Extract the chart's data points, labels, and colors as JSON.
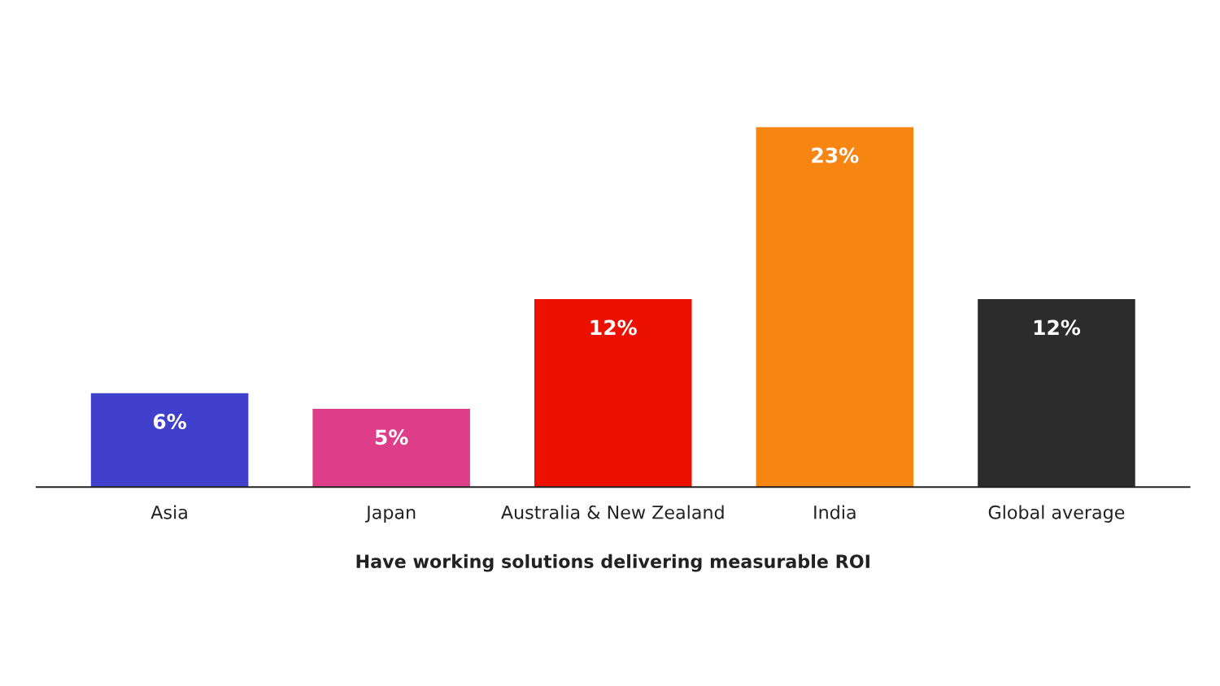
{
  "chart_data": {
    "type": "bar",
    "xlabel": "Have working solutions delivering measurable ROI",
    "categories": [
      "Asia",
      "Japan",
      "Australia & New Zealand",
      "India",
      "Global average"
    ],
    "values": [
      6,
      5,
      12,
      23,
      12
    ],
    "colors": [
      "#4040cc",
      "#de3d8a",
      "#eb1000",
      "#f68511",
      "#2c2c2c"
    ],
    "value_labels": [
      "6%",
      "5%",
      "12%",
      "23%",
      "12%"
    ],
    "grid": false,
    "legend": false
  }
}
